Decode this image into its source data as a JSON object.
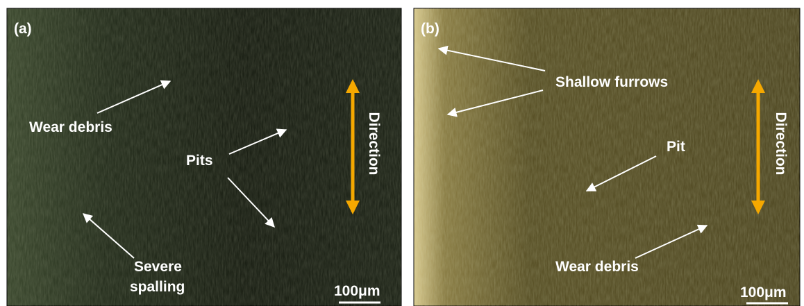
{
  "panels": [
    {
      "label": "(a)",
      "annotations": [
        "Wear debris",
        "Pits",
        "Severe",
        "spalling"
      ],
      "direction": "Direction",
      "scale_bar": "100μm"
    },
    {
      "label": "(b)",
      "annotations": [
        "Shallow furrows",
        "Pit",
        "Wear debris"
      ],
      "direction": "Direction",
      "scale_bar": "100μm"
    }
  ]
}
